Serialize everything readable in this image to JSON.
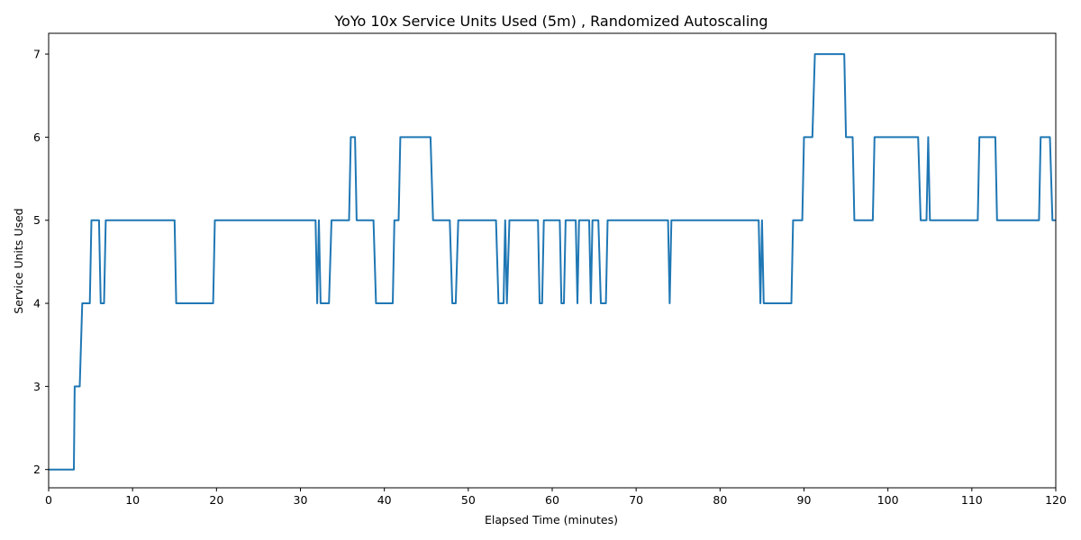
{
  "chart_data": {
    "type": "line",
    "title": "YoYo 10x Service Units Used (5m) , Randomized Autoscaling",
    "xlabel": "Elapsed Time (minutes)",
    "ylabel": "Service Units Used",
    "xlim": [
      0,
      120
    ],
    "ylim": [
      1.78,
      7.25
    ],
    "xticks": [
      0,
      10,
      20,
      30,
      40,
      50,
      60,
      70,
      80,
      90,
      100,
      110,
      120
    ],
    "yticks": [
      2,
      3,
      4,
      5,
      6,
      7
    ],
    "grid": false,
    "colors": {
      "series": "#1f77b4"
    },
    "series": [
      {
        "points": [
          [
            0,
            2
          ],
          [
            3.0,
            2
          ],
          [
            3.1,
            3
          ],
          [
            3.7,
            3
          ],
          [
            4.0,
            4
          ],
          [
            4.9,
            4
          ],
          [
            5.1,
            5
          ],
          [
            6.0,
            5
          ],
          [
            6.2,
            4
          ],
          [
            6.6,
            4
          ],
          [
            6.8,
            5
          ],
          [
            15.0,
            5
          ],
          [
            15.2,
            4
          ],
          [
            19.6,
            4
          ],
          [
            19.8,
            5
          ],
          [
            31.8,
            5
          ],
          [
            32.0,
            4
          ],
          [
            32.2,
            5
          ],
          [
            32.4,
            4
          ],
          [
            33.4,
            4
          ],
          [
            33.7,
            5
          ],
          [
            35.8,
            5
          ],
          [
            36.0,
            6
          ],
          [
            36.5,
            6
          ],
          [
            36.7,
            5
          ],
          [
            38.7,
            5
          ],
          [
            39.0,
            4
          ],
          [
            41.0,
            4
          ],
          [
            41.2,
            5
          ],
          [
            41.7,
            5
          ],
          [
            41.9,
            6
          ],
          [
            45.5,
            6
          ],
          [
            45.8,
            5
          ],
          [
            47.8,
            5
          ],
          [
            48.1,
            4
          ],
          [
            48.5,
            4
          ],
          [
            48.8,
            5
          ],
          [
            53.3,
            5
          ],
          [
            53.6,
            4
          ],
          [
            54.2,
            4
          ],
          [
            54.4,
            5
          ],
          [
            54.6,
            4
          ],
          [
            54.9,
            5
          ],
          [
            58.3,
            5
          ],
          [
            58.5,
            4
          ],
          [
            58.8,
            4
          ],
          [
            59.0,
            5
          ],
          [
            60.9,
            5
          ],
          [
            61.1,
            4
          ],
          [
            61.4,
            4
          ],
          [
            61.6,
            5
          ],
          [
            62.8,
            5
          ],
          [
            63.0,
            4
          ],
          [
            63.2,
            5
          ],
          [
            64.4,
            5
          ],
          [
            64.6,
            4
          ],
          [
            64.8,
            5
          ],
          [
            65.5,
            5
          ],
          [
            65.8,
            4
          ],
          [
            66.4,
            4
          ],
          [
            66.6,
            5
          ],
          [
            73.8,
            5
          ],
          [
            74.0,
            4
          ],
          [
            74.2,
            5
          ],
          [
            84.6,
            5
          ],
          [
            84.8,
            4
          ],
          [
            85.0,
            5
          ],
          [
            85.2,
            4
          ],
          [
            88.5,
            4
          ],
          [
            88.7,
            5
          ],
          [
            89.8,
            5
          ],
          [
            90.0,
            6
          ],
          [
            91.0,
            6
          ],
          [
            91.3,
            7
          ],
          [
            94.8,
            7
          ],
          [
            95.0,
            6
          ],
          [
            95.8,
            6
          ],
          [
            96.0,
            5
          ],
          [
            98.2,
            5
          ],
          [
            98.4,
            6
          ],
          [
            103.6,
            6
          ],
          [
            103.9,
            5
          ],
          [
            104.6,
            5
          ],
          [
            104.8,
            6
          ],
          [
            105.0,
            5
          ],
          [
            110.7,
            5
          ],
          [
            110.9,
            6
          ],
          [
            112.8,
            6
          ],
          [
            113.0,
            5
          ],
          [
            118.0,
            5
          ],
          [
            118.2,
            6
          ],
          [
            119.3,
            6
          ],
          [
            119.6,
            5
          ],
          [
            120,
            5
          ]
        ]
      }
    ]
  }
}
